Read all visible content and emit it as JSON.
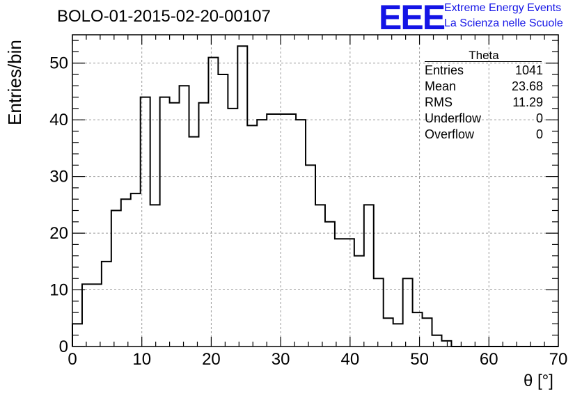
{
  "header": {
    "title": "BOLO-01-2015-02-20-00107",
    "logo_text": "EEE",
    "org_line1": "Extreme Energy Events",
    "org_line2": "La Scienza nelle Scuole"
  },
  "stats": {
    "name": "Theta",
    "rows": [
      {
        "label": "Entries",
        "value": "1041"
      },
      {
        "label": "Mean",
        "value": "23.68"
      },
      {
        "label": "RMS",
        "value": "11.29"
      },
      {
        "label": "Underflow",
        "value": "0"
      },
      {
        "label": "Overflow",
        "value": "0"
      }
    ]
  },
  "chart_data": {
    "type": "bar",
    "histogram": true,
    "title": "BOLO-01-2015-02-20-00107",
    "xlabel": "θ [°]",
    "ylabel": "Entries/bin",
    "xlim": [
      0,
      70
    ],
    "ylim": [
      0,
      55
    ],
    "bin_width": 1.4,
    "x_ticks": [
      "0",
      "10",
      "20",
      "30",
      "40",
      "50",
      "60",
      "70"
    ],
    "y_ticks": [
      "0",
      "10",
      "20",
      "30",
      "40",
      "50"
    ],
    "grid": true,
    "values": [
      4,
      11,
      11,
      15,
      24,
      26,
      27,
      44,
      25,
      44,
      43,
      46,
      37,
      43,
      51,
      48,
      42,
      53,
      39,
      40,
      41,
      41,
      41,
      40,
      32,
      25,
      22,
      19,
      19,
      16,
      25,
      12,
      5,
      4,
      12,
      6,
      5,
      2,
      1,
      0,
      0,
      0,
      0,
      0,
      0,
      0,
      0,
      0,
      0,
      0
    ]
  },
  "colors": {
    "line": "#000000",
    "grid": "#9a9a9a",
    "brand": "#1414e6"
  }
}
